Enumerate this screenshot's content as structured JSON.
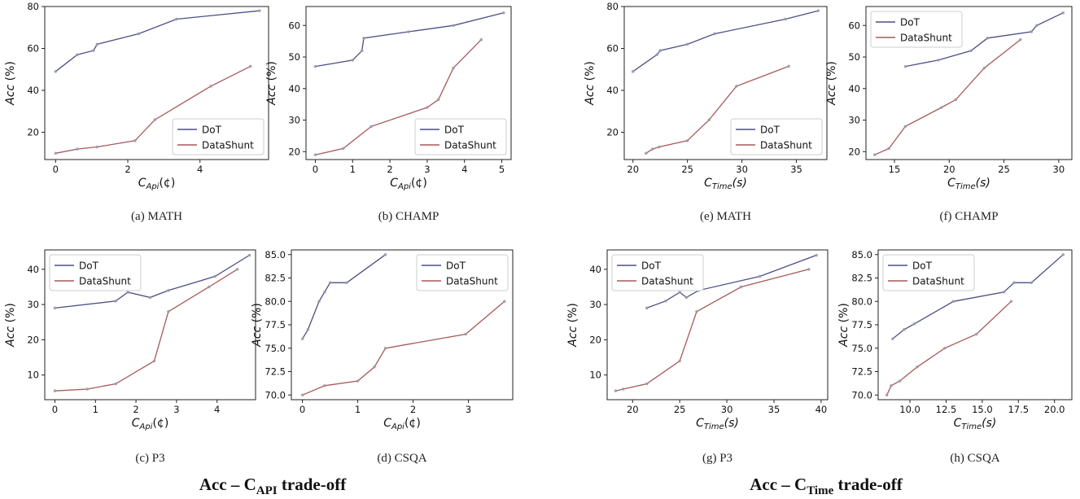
{
  "colors": {
    "dot": "#4b4f86",
    "datashunt": "#a8585a",
    "marker": "#9a9aa6"
  },
  "group_titles": [
    {
      "main": "Acc – C",
      "sub": "API",
      "tail": " trade-off"
    },
    {
      "main": "Acc – C",
      "sub": "Time",
      "tail": " trade-off"
    }
  ],
  "chart_data": [
    {
      "type": "line",
      "caption": "(a)  MATH",
      "ylabel": "Acc (%)",
      "xlabel_main": "C",
      "xlabel_sub": "Api",
      "xlabel_tail": "(¢)",
      "xlim": [
        -0.3,
        5.9
      ],
      "ylim": [
        7,
        80
      ],
      "xticks": [
        0,
        2,
        4
      ],
      "yticks": [
        20,
        40,
        60,
        80
      ],
      "ytick_labels": [
        "20",
        "40",
        "60",
        "80"
      ],
      "legend": "bottom-right",
      "series": [
        {
          "name": "DoT",
          "x": [
            0,
            0.6,
            1.05,
            1.15,
            2.3,
            3.35,
            5.65
          ],
          "y": [
            49,
            57,
            59,
            62,
            67,
            74,
            78
          ]
        },
        {
          "name": "DataShunt",
          "x": [
            0,
            0.6,
            1.15,
            2.2,
            2.75,
            4.3,
            5.4
          ],
          "y": [
            10,
            12,
            13,
            16,
            26,
            42,
            51.5
          ]
        }
      ]
    },
    {
      "type": "line",
      "caption": "(b)  CHAMP",
      "ylabel": "Acc (%)",
      "xlabel_main": "C",
      "xlabel_sub": "Api",
      "xlabel_tail": "(¢)",
      "xlim": [
        -0.25,
        5.25
      ],
      "ylim": [
        17.5,
        66
      ],
      "xticks": [
        0,
        1,
        2,
        3,
        4,
        5
      ],
      "yticks": [
        20,
        30,
        40,
        50,
        60
      ],
      "ytick_labels": [
        "20",
        "30",
        "40",
        "50",
        "60"
      ],
      "legend": "bottom-right",
      "series": [
        {
          "name": "DoT",
          "x": [
            0,
            1,
            1.25,
            1.3,
            2.5,
            3.7,
            5.05
          ],
          "y": [
            47,
            49,
            52,
            56,
            58,
            60,
            64
          ]
        },
        {
          "name": "DataShunt",
          "x": [
            0,
            0.75,
            1.5,
            3,
            3.3,
            3.7,
            4.45
          ],
          "y": [
            19,
            21,
            28,
            34,
            36.5,
            46.5,
            55.5
          ]
        }
      ]
    },
    {
      "type": "line",
      "caption": "(c)  P3",
      "ylabel": "Acc (%)",
      "xlabel_main": "C",
      "xlabel_sub": "Api",
      "xlabel_tail": "(¢)",
      "xlim": [
        -0.25,
        4.95
      ],
      "ylim": [
        3,
        45.5
      ],
      "xticks": [
        0,
        1,
        2,
        3,
        4
      ],
      "yticks": [
        10,
        20,
        30,
        40
      ],
      "ytick_labels": [
        "10",
        "20",
        "30",
        "40"
      ],
      "legend": "top-left",
      "series": [
        {
          "name": "DoT",
          "x": [
            0,
            1.5,
            1.8,
            2.35,
            2.8,
            3.95,
            4.8
          ],
          "y": [
            29,
            31,
            33.5,
            32,
            34,
            38,
            44
          ]
        },
        {
          "name": "DataShunt",
          "x": [
            0,
            0.8,
            1.5,
            2.45,
            2.8,
            3.8,
            4.5
          ],
          "y": [
            5.5,
            6,
            7.5,
            14,
            28,
            35,
            40
          ]
        }
      ]
    },
    {
      "type": "line",
      "caption": "(d)  CSQA",
      "ylabel": "Acc (%)",
      "xlabel_main": "C",
      "xlabel_sub": "Api",
      "xlabel_tail": "(¢)",
      "xlim": [
        -0.2,
        3.8
      ],
      "ylim": [
        69.5,
        85.5
      ],
      "xticks": [
        0,
        1,
        2,
        3
      ],
      "yticks": [
        70,
        72.5,
        75,
        77.5,
        80,
        82.5,
        85
      ],
      "ytick_labels": [
        "70.0",
        "72.5",
        "75.0",
        "77.5",
        "80.0",
        "82.5",
        "85.0"
      ],
      "legend": "top-right",
      "series": [
        {
          "name": "DoT",
          "x": [
            0,
            0.1,
            0.3,
            0.4,
            0.5,
            0.8,
            1.5
          ],
          "y": [
            76,
            77,
            80,
            81,
            82,
            82,
            85
          ]
        },
        {
          "name": "DataShunt",
          "x": [
            0,
            0.4,
            1,
            1.3,
            1.5,
            2.95,
            3.65
          ],
          "y": [
            70,
            71,
            71.5,
            73,
            75,
            76.5,
            80
          ]
        }
      ]
    },
    {
      "type": "line",
      "caption": "(e)  MATH",
      "ylabel": "Acc (%)",
      "xlabel_main": "C",
      "xlabel_sub": "Time",
      "xlabel_tail": "(s)",
      "xlim": [
        19.2,
        37.8
      ],
      "ylim": [
        7,
        80
      ],
      "xticks": [
        20,
        25,
        30,
        35
      ],
      "yticks": [
        20,
        40,
        60,
        80
      ],
      "ytick_labels": [
        "20",
        "40",
        "60",
        "80"
      ],
      "legend": "bottom-right",
      "series": [
        {
          "name": "DoT",
          "x": [
            20,
            22.2,
            22.5,
            25,
            27.5,
            34,
            37
          ],
          "y": [
            49,
            57,
            59,
            62,
            67,
            74,
            78
          ]
        },
        {
          "name": "DataShunt",
          "x": [
            21.2,
            21.8,
            22.4,
            25,
            27,
            29.5,
            34.3
          ],
          "y": [
            10,
            12,
            13,
            16,
            26,
            42,
            51.5
          ]
        }
      ]
    },
    {
      "type": "line",
      "caption": "(f)  CHAMP",
      "ylabel": "Acc (%)",
      "xlabel_main": "C",
      "xlabel_sub": "Time",
      "xlabel_tail": "(s)",
      "xlim": [
        12.4,
        31.2
      ],
      "ylim": [
        17.5,
        66
      ],
      "xticks": [
        15,
        20,
        25,
        30
      ],
      "yticks": [
        20,
        30,
        40,
        50,
        60
      ],
      "ytick_labels": [
        "20",
        "30",
        "40",
        "50",
        "60"
      ],
      "legend": "top-left",
      "series": [
        {
          "name": "DoT",
          "x": [
            16,
            19,
            22,
            23.5,
            27.5,
            28,
            30.4
          ],
          "y": [
            47,
            49,
            52,
            56,
            58,
            60,
            64
          ]
        },
        {
          "name": "DataShunt",
          "x": [
            13.2,
            14.5,
            16,
            19.3,
            20.6,
            23.2,
            26.5
          ],
          "y": [
            19,
            21,
            28,
            34,
            36.5,
            46.5,
            55.5
          ]
        }
      ]
    },
    {
      "type": "line",
      "caption": "(g)  P3",
      "ylabel": "Acc (%)",
      "xlabel_main": "C",
      "xlabel_sub": "Time",
      "xlabel_tail": "(s)",
      "xlim": [
        17.3,
        40.7
      ],
      "ylim": [
        3,
        45.5
      ],
      "xticks": [
        20,
        25,
        30,
        35,
        40
      ],
      "yticks": [
        10,
        20,
        30,
        40
      ],
      "ytick_labels": [
        "10",
        "20",
        "30",
        "40"
      ],
      "legend": "top-left",
      "series": [
        {
          "name": "DoT",
          "x": [
            21.5,
            23.5,
            25,
            25.7,
            27,
            33.5,
            39.5
          ],
          "y": [
            29,
            31,
            33.5,
            32,
            34,
            38,
            44
          ]
        },
        {
          "name": "DataShunt",
          "x": [
            18.2,
            19,
            21.5,
            25,
            26.8,
            31.5,
            38.7
          ],
          "y": [
            5.5,
            6,
            7.5,
            14,
            28,
            35,
            40
          ]
        }
      ]
    },
    {
      "type": "line",
      "caption": "(h)  CSQA",
      "ylabel": "Acc (%)",
      "xlabel_main": "C",
      "xlabel_sub": "Time",
      "xlabel_tail": "(s)",
      "xlim": [
        7.8,
        21.2
      ],
      "ylim": [
        69.5,
        85.5
      ],
      "xticks": [
        10,
        12.5,
        15,
        17.5,
        20
      ],
      "xtick_labels": [
        "10.0",
        "12.5",
        "15.0",
        "17.5",
        "20.0"
      ],
      "yticks": [
        70,
        72.5,
        75,
        77.5,
        80,
        82.5,
        85
      ],
      "ytick_labels": [
        "70.0",
        "72.5",
        "75.0",
        "77.5",
        "80.0",
        "82.5",
        "85.0"
      ],
      "legend": "top-left",
      "series": [
        {
          "name": "DoT",
          "x": [
            8.8,
            9.6,
            10.3,
            13,
            16.5,
            17.2,
            18.4,
            20.6
          ],
          "y": [
            76,
            77,
            77.6,
            80,
            81,
            82,
            82,
            85
          ]
        },
        {
          "name": "DataShunt",
          "x": [
            8.4,
            8.7,
            9.3,
            10.5,
            12.4,
            14.6,
            17
          ],
          "y": [
            70,
            71,
            71.5,
            73,
            75,
            76.5,
            80
          ]
        }
      ]
    }
  ]
}
